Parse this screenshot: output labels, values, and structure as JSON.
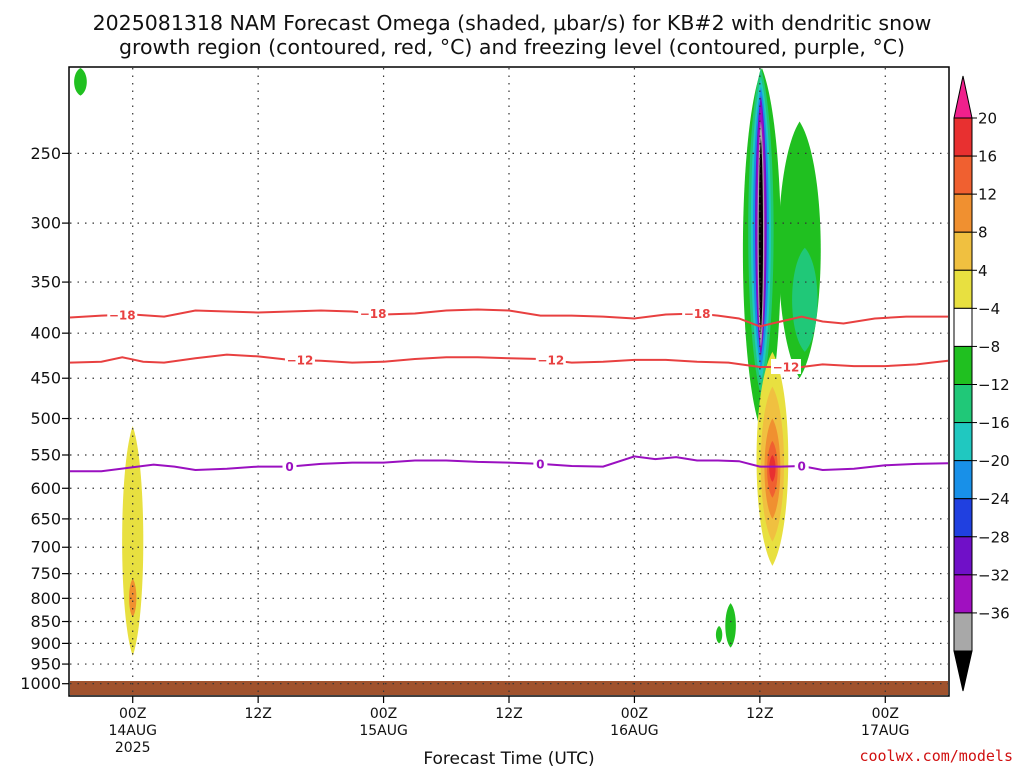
{
  "title": {
    "line1": "2025081318 NAM Forecast Omega (shaded, μbar/s) for KB#2 with dendritic snow",
    "line2": "growth region (contoured, red, °C) and freezing level (contoured, purple, °C)"
  },
  "credit": "coolwx.com/models",
  "chart_data": {
    "type": "time-height",
    "xlabel": "Forecast Time (UTC)",
    "x_ticks": [
      {
        "hour": 6,
        "label": "00Z",
        "sub1": "14AUG",
        "sub2": "2025"
      },
      {
        "hour": 18,
        "label": "12Z",
        "sub1": "",
        "sub2": ""
      },
      {
        "hour": 30,
        "label": "00Z",
        "sub1": "15AUG",
        "sub2": ""
      },
      {
        "hour": 42,
        "label": "12Z",
        "sub1": "",
        "sub2": ""
      },
      {
        "hour": 54,
        "label": "00Z",
        "sub1": "16AUG",
        "sub2": ""
      },
      {
        "hour": 66,
        "label": "12Z",
        "sub1": "",
        "sub2": ""
      },
      {
        "hour": 78,
        "label": "00Z",
        "sub1": "17AUG",
        "sub2": ""
      }
    ],
    "xlim_hours": [
      0,
      84
    ],
    "y_ticks_hPa": [
      1000,
      950,
      900,
      850,
      800,
      750,
      700,
      650,
      600,
      550,
      500,
      450,
      400,
      350,
      300,
      250
    ],
    "ylim_hPa": [
      1030,
      200
    ],
    "y_scale": "log-pressure",
    "grid": true,
    "colorbar": {
      "labels": [
        "20",
        "16",
        "12",
        "8",
        "4",
        "-4",
        "-8",
        "-12",
        "-16",
        "-20",
        "-24",
        "-28",
        "-32",
        "-36"
      ],
      "colors": [
        "#f0208c",
        "#e83030",
        "#f06030",
        "#f09030",
        "#f0c040",
        "#e8e040",
        "#ffffff",
        "#20c020",
        "#20c878",
        "#20c8c0",
        "#1890e8",
        "#2040e0",
        "#7010c8",
        "#a010c0",
        "#a8a8a8",
        "#000000"
      ]
    },
    "omega_regions": [
      {
        "name": "topleft-green",
        "color": "#20c020",
        "hour": 1.0,
        "hw": 0.6,
        "p_top": 200,
        "p_bot": 215
      },
      {
        "name": "day1-yellow",
        "color": "#e8e040",
        "hour": 6.0,
        "hw": 1.0,
        "p_top": 510,
        "p_bot": 930
      },
      {
        "name": "day1-orange",
        "color": "#f09030",
        "hour": 6.0,
        "hw": 0.35,
        "p_top": 760,
        "p_bot": 840
      },
      {
        "name": "low-green-a",
        "color": "#20c020",
        "hour": 62.1,
        "hw": 0.3,
        "p_top": 860,
        "p_bot": 900
      },
      {
        "name": "low-green-b",
        "color": "#20c020",
        "hour": 63.2,
        "hw": 0.5,
        "p_top": 810,
        "p_bot": 910
      },
      {
        "name": "storm-green",
        "color": "#20c020",
        "hour": 66.2,
        "hw": 1.8,
        "p_top": 200,
        "p_bot": 520
      },
      {
        "name": "storm-green-east",
        "color": "#20c020",
        "hour": 69.8,
        "hw": 2.0,
        "p_top": 230,
        "p_bot": 450
      },
      {
        "name": "storm-teal-east",
        "color": "#20c878",
        "hour": 70.3,
        "hw": 1.2,
        "p_top": 320,
        "p_bot": 420
      },
      {
        "name": "storm-teal",
        "color": "#20c878",
        "hour": 66.1,
        "hw": 1.2,
        "p_top": 200,
        "p_bot": 470
      },
      {
        "name": "storm-cyan",
        "color": "#20c8c0",
        "hour": 66.1,
        "hw": 0.95,
        "p_top": 205,
        "p_bot": 455
      },
      {
        "name": "storm-blue",
        "color": "#1890e8",
        "hour": 66.1,
        "hw": 0.75,
        "p_top": 210,
        "p_bot": 440
      },
      {
        "name": "storm-purple",
        "color": "#7010c8",
        "hour": 66.1,
        "hw": 0.55,
        "p_top": 215,
        "p_bot": 425
      },
      {
        "name": "storm-magenta",
        "color": "#a010c0",
        "hour": 66.1,
        "hw": 0.42,
        "p_top": 220,
        "p_bot": 420
      },
      {
        "name": "storm-gray",
        "color": "#a8a8a8",
        "hour": 66.1,
        "hw": 0.32,
        "p_top": 230,
        "p_bot": 415
      },
      {
        "name": "storm-black",
        "color": "#000000",
        "hour": 66.1,
        "hw": 0.2,
        "p_top": 240,
        "p_bot": 400
      },
      {
        "name": "rise-yellow",
        "color": "#e8e040",
        "hour": 67.2,
        "hw": 1.5,
        "p_top": 420,
        "p_bot": 735
      },
      {
        "name": "rise-gold",
        "color": "#f0c040",
        "hour": 67.2,
        "hw": 1.1,
        "p_top": 460,
        "p_bot": 690
      },
      {
        "name": "rise-orange",
        "color": "#f09030",
        "hour": 67.2,
        "hw": 0.75,
        "p_top": 500,
        "p_bot": 650
      },
      {
        "name": "rise-red-orange",
        "color": "#f06030",
        "hour": 67.2,
        "hw": 0.5,
        "p_top": 530,
        "p_bot": 615
      },
      {
        "name": "rise-red",
        "color": "#e83030",
        "hour": 67.2,
        "hw": 0.3,
        "p_top": 550,
        "p_bot": 590
      }
    ],
    "contours": [
      {
        "value": "-18",
        "color": "#e84040",
        "label_hours": [
          5,
          29,
          60
        ],
        "points": [
          [
            0,
            384
          ],
          [
            3,
            382
          ],
          [
            6,
            381
          ],
          [
            9,
            383
          ],
          [
            12,
            377
          ],
          [
            15,
            378
          ],
          [
            18,
            379
          ],
          [
            21,
            378
          ],
          [
            24,
            377
          ],
          [
            27,
            378
          ],
          [
            30,
            381
          ],
          [
            33,
            380
          ],
          [
            36,
            377
          ],
          [
            39,
            376
          ],
          [
            42,
            377
          ],
          [
            45,
            382
          ],
          [
            48,
            382
          ],
          [
            51,
            383
          ],
          [
            54,
            385
          ],
          [
            57,
            381
          ],
          [
            60,
            380
          ],
          [
            62,
            382
          ],
          [
            64,
            385
          ],
          [
            66,
            393
          ],
          [
            68,
            388
          ],
          [
            70,
            383
          ],
          [
            72,
            388
          ],
          [
            74,
            390
          ],
          [
            77,
            385
          ],
          [
            80,
            383
          ],
          [
            84,
            383
          ]
        ]
      },
      {
        "value": "-12",
        "color": "#e84040",
        "label_hours": [
          22,
          46,
          68.5
        ],
        "points": [
          [
            0,
            432
          ],
          [
            3,
            431
          ],
          [
            5,
            426
          ],
          [
            7,
            431
          ],
          [
            9,
            432
          ],
          [
            12,
            427
          ],
          [
            15,
            423
          ],
          [
            18,
            425
          ],
          [
            21,
            429
          ],
          [
            24,
            430
          ],
          [
            27,
            432
          ],
          [
            30,
            431
          ],
          [
            33,
            428
          ],
          [
            36,
            426
          ],
          [
            39,
            426
          ],
          [
            42,
            427
          ],
          [
            45,
            428
          ],
          [
            48,
            432
          ],
          [
            51,
            431
          ],
          [
            54,
            429
          ],
          [
            57,
            429
          ],
          [
            60,
            431
          ],
          [
            63,
            432
          ],
          [
            66,
            437
          ],
          [
            68,
            437
          ],
          [
            70,
            437
          ],
          [
            72,
            434
          ],
          [
            75,
            436
          ],
          [
            78,
            436
          ],
          [
            81,
            434
          ],
          [
            84,
            430
          ]
        ]
      },
      {
        "value": "0",
        "color": "#9a10c0",
        "label_hours": [
          21,
          45,
          70
        ],
        "points": [
          [
            0,
            574
          ],
          [
            3,
            574
          ],
          [
            6,
            568
          ],
          [
            8,
            564
          ],
          [
            10,
            567
          ],
          [
            12,
            572
          ],
          [
            15,
            570
          ],
          [
            18,
            567
          ],
          [
            21,
            567
          ],
          [
            24,
            563
          ],
          [
            27,
            561
          ],
          [
            30,
            561
          ],
          [
            33,
            558
          ],
          [
            36,
            558
          ],
          [
            39,
            560
          ],
          [
            42,
            561
          ],
          [
            45,
            563
          ],
          [
            48,
            566
          ],
          [
            51,
            567
          ],
          [
            54,
            552
          ],
          [
            56,
            556
          ],
          [
            58,
            553
          ],
          [
            60,
            558
          ],
          [
            62,
            558
          ],
          [
            64,
            559
          ],
          [
            66,
            567
          ],
          [
            68,
            567
          ],
          [
            70,
            566
          ],
          [
            72,
            572
          ],
          [
            75,
            570
          ],
          [
            78,
            565
          ],
          [
            81,
            563
          ],
          [
            84,
            562
          ]
        ]
      }
    ]
  }
}
